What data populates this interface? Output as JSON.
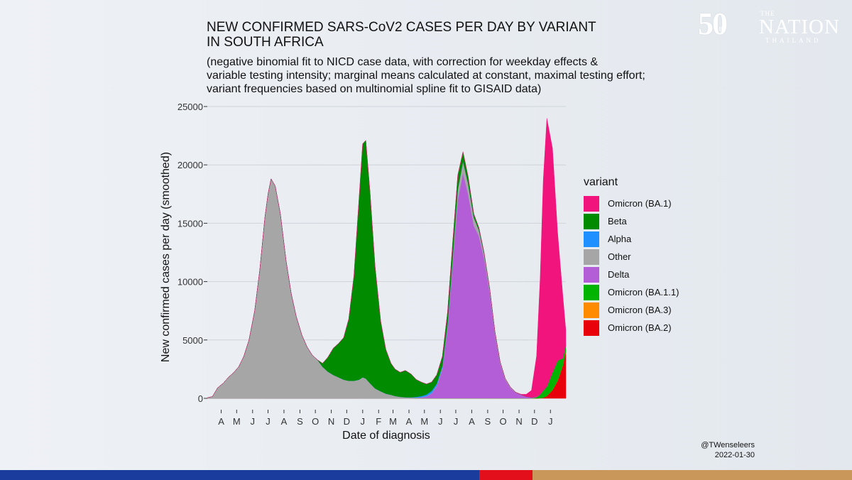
{
  "header": {
    "title_line1": "NEW CONFIRMED SARS-CoV2 CASES PER DAY BY VARIANT",
    "title_line2": "IN SOUTH AFRICA",
    "subtitle_line1": "(negative binomial fit to NICD case data, with correction for weekday effects &",
    "subtitle_line2": "variable testing intensity; marginal means calculated at constant, maximal testing effort;",
    "subtitle_line3": "variant frequencies based on multinomial spline fit to GISAID data)"
  },
  "logo": {
    "number": "50",
    "years": "th",
    "the": "THE",
    "name": "NATION",
    "country": "THAILAND"
  },
  "credit": {
    "author": "@TWenseleers",
    "date": "2022-01-30"
  },
  "colors": {
    "background": "#e8ecf1",
    "grid": "#cfd4da",
    "bar_blue": "#1a3c9c",
    "bar_red": "#e3101b",
    "bar_gold": "#c9975a"
  },
  "chart_data": {
    "type": "area",
    "stacked": true,
    "xlabel": "Date of diagnosis",
    "ylabel": "New confirmed cases per day (smoothed)",
    "ylim": [
      0,
      25000
    ],
    "yticks": [
      0,
      5000,
      10000,
      15000,
      20000,
      25000
    ],
    "ytick_labels": [
      "0",
      "5000",
      "10000",
      "15000",
      "20000",
      "25000"
    ],
    "xlim": [
      "2020-03-05",
      "2022-01-31"
    ],
    "xticks": [
      "2020-04-01",
      "2020-05-01",
      "2020-06-01",
      "2020-07-01",
      "2020-08-01",
      "2020-09-01",
      "2020-10-01",
      "2020-11-01",
      "2020-12-01",
      "2021-01-01",
      "2021-02-01",
      "2021-03-01",
      "2021-04-01",
      "2021-05-01",
      "2021-06-01",
      "2021-07-01",
      "2021-08-01",
      "2021-09-01",
      "2021-10-01",
      "2021-11-01",
      "2021-12-01",
      "2022-01-01"
    ],
    "xtick_labels": [
      "A",
      "M",
      "J",
      "J",
      "A",
      "S",
      "O",
      "N",
      "D",
      "J",
      "F",
      "M",
      "A",
      "M",
      "J",
      "J",
      "A",
      "S",
      "O",
      "N",
      "D",
      "J"
    ],
    "legend_title": "variant",
    "legend_position": "right",
    "grid": true,
    "x": [
      "2020-03-05",
      "2020-03-15",
      "2020-03-25",
      "2020-04-05",
      "2020-04-15",
      "2020-04-25",
      "2020-05-05",
      "2020-05-15",
      "2020-05-25",
      "2020-06-05",
      "2020-06-15",
      "2020-06-25",
      "2020-07-01",
      "2020-07-07",
      "2020-07-15",
      "2020-07-25",
      "2020-08-05",
      "2020-08-15",
      "2020-08-25",
      "2020-09-05",
      "2020-09-15",
      "2020-09-25",
      "2020-10-05",
      "2020-10-15",
      "2020-10-25",
      "2020-11-05",
      "2020-11-15",
      "2020-11-25",
      "2020-12-05",
      "2020-12-15",
      "2020-12-25",
      "2021-01-01",
      "2021-01-07",
      "2021-01-15",
      "2021-01-25",
      "2021-02-05",
      "2021-02-15",
      "2021-02-25",
      "2021-03-05",
      "2021-03-15",
      "2021-03-25",
      "2021-04-05",
      "2021-04-15",
      "2021-04-25",
      "2021-05-05",
      "2021-05-15",
      "2021-05-25",
      "2021-06-05",
      "2021-06-15",
      "2021-06-25",
      "2021-07-05",
      "2021-07-15",
      "2021-07-25",
      "2021-08-05",
      "2021-08-15",
      "2021-08-25",
      "2021-09-05",
      "2021-09-15",
      "2021-09-25",
      "2021-10-05",
      "2021-10-15",
      "2021-10-25",
      "2021-11-05",
      "2021-11-15",
      "2021-11-25",
      "2021-12-05",
      "2021-12-12",
      "2021-12-18",
      "2021-12-25",
      "2022-01-05",
      "2022-01-15",
      "2022-01-25",
      "2022-01-31"
    ],
    "series": [
      {
        "name": "Omicron (BA.2)",
        "color": "#e8000b",
        "values": [
          0,
          0,
          0,
          0,
          0,
          0,
          0,
          0,
          0,
          0,
          0,
          0,
          0,
          0,
          0,
          0,
          0,
          0,
          0,
          0,
          0,
          0,
          0,
          0,
          0,
          0,
          0,
          0,
          0,
          0,
          0,
          0,
          0,
          0,
          0,
          0,
          0,
          0,
          0,
          0,
          0,
          0,
          0,
          0,
          0,
          0,
          0,
          0,
          0,
          0,
          0,
          0,
          0,
          0,
          0,
          0,
          0,
          0,
          0,
          0,
          0,
          0,
          0,
          0,
          0,
          0,
          10,
          50,
          200,
          700,
          1500,
          2800,
          4000
        ]
      },
      {
        "name": "Omicron (BA.3)",
        "color": "#ff8c00",
        "values": [
          0,
          0,
          0,
          0,
          0,
          0,
          0,
          0,
          0,
          0,
          0,
          0,
          0,
          0,
          0,
          0,
          0,
          0,
          0,
          0,
          0,
          0,
          0,
          0,
          0,
          0,
          0,
          0,
          0,
          0,
          0,
          0,
          0,
          0,
          0,
          0,
          0,
          0,
          0,
          0,
          0,
          0,
          0,
          0,
          0,
          0,
          0,
          0,
          0,
          0,
          0,
          0,
          0,
          0,
          0,
          0,
          0,
          0,
          0,
          0,
          0,
          0,
          0,
          0,
          0,
          0,
          0,
          0,
          0,
          20,
          30,
          30,
          30
        ]
      },
      {
        "name": "Omicron (BA.1.1)",
        "color": "#00b400",
        "values": [
          0,
          0,
          0,
          0,
          0,
          0,
          0,
          0,
          0,
          0,
          0,
          0,
          0,
          0,
          0,
          0,
          0,
          0,
          0,
          0,
          0,
          0,
          0,
          0,
          0,
          0,
          0,
          0,
          0,
          0,
          0,
          0,
          0,
          0,
          0,
          0,
          0,
          0,
          0,
          0,
          0,
          0,
          0,
          0,
          0,
          0,
          0,
          0,
          0,
          0,
          0,
          0,
          0,
          0,
          0,
          0,
          0,
          0,
          0,
          0,
          0,
          0,
          0,
          0,
          0,
          80,
          300,
          600,
          800,
          1500,
          1700,
          600,
          500
        ]
      },
      {
        "name": "Delta",
        "color": "#b35ed6",
        "values": [
          0,
          0,
          0,
          0,
          0,
          0,
          0,
          0,
          0,
          0,
          0,
          0,
          0,
          0,
          0,
          0,
          0,
          0,
          0,
          0,
          0,
          0,
          0,
          0,
          0,
          0,
          0,
          0,
          0,
          0,
          0,
          0,
          0,
          0,
          0,
          0,
          0,
          0,
          0,
          0,
          0,
          5,
          20,
          60,
          150,
          400,
          1000,
          2500,
          6000,
          11500,
          17000,
          19300,
          17500,
          14800,
          13900,
          12000,
          9000,
          5500,
          3000,
          1600,
          900,
          500,
          300,
          150,
          80,
          40,
          20,
          10,
          5,
          0,
          0,
          0,
          0
        ]
      },
      {
        "name": "Other",
        "color": "#a6a6a6",
        "values": [
          50,
          150,
          900,
          1300,
          1800,
          2200,
          2700,
          3600,
          5000,
          7500,
          11000,
          15500,
          17500,
          18800,
          18200,
          15800,
          11800,
          9000,
          7000,
          5400,
          4400,
          3700,
          3300,
          2700,
          2300,
          2000,
          1800,
          1600,
          1500,
          1500,
          1600,
          1800,
          1700,
          1300,
          850,
          600,
          400,
          300,
          200,
          130,
          90,
          60,
          40,
          30,
          30,
          40,
          80,
          150,
          300,
          500,
          900,
          1000,
          900,
          700,
          500,
          380,
          300,
          220,
          150,
          100,
          60,
          30,
          10,
          5,
          0,
          0,
          0,
          0,
          0,
          0,
          0,
          0,
          0
        ]
      },
      {
        "name": "Alpha",
        "color": "#1e90ff",
        "values": [
          0,
          0,
          0,
          0,
          0,
          0,
          0,
          0,
          0,
          0,
          0,
          0,
          0,
          0,
          0,
          0,
          0,
          0,
          0,
          0,
          0,
          0,
          0,
          0,
          0,
          0,
          0,
          0,
          0,
          0,
          0,
          0,
          0,
          0,
          0,
          0,
          0,
          0,
          0,
          0,
          0,
          20,
          60,
          100,
          150,
          200,
          180,
          150,
          100,
          60,
          30,
          20,
          10,
          5,
          0,
          0,
          0,
          0,
          0,
          0,
          0,
          0,
          0,
          0,
          0,
          0,
          0,
          0,
          0,
          0,
          0,
          0,
          0
        ]
      },
      {
        "name": "Beta",
        "color": "#008b00",
        "values": [
          0,
          0,
          0,
          0,
          0,
          0,
          0,
          0,
          0,
          0,
          0,
          0,
          0,
          0,
          0,
          0,
          0,
          0,
          0,
          0,
          0,
          0,
          0,
          300,
          1200,
          2300,
          2900,
          3600,
          5300,
          9000,
          15500,
          20000,
          20400,
          16500,
          10500,
          6000,
          3800,
          2700,
          2300,
          2100,
          2300,
          2000,
          1500,
          1200,
          900,
          750,
          750,
          800,
          1000,
          1300,
          1200,
          800,
          600,
          300,
          200,
          120,
          80,
          40,
          20,
          10,
          5,
          0,
          0,
          0,
          0,
          0,
          0,
          0,
          0,
          0,
          0,
          0,
          0
        ]
      },
      {
        "name": "Omicron (BA.1)",
        "color": "#f0147c",
        "values": [
          0,
          0,
          0,
          0,
          0,
          0,
          0,
          0,
          0,
          0,
          0,
          0,
          0,
          0,
          0,
          0,
          0,
          0,
          0,
          0,
          0,
          0,
          0,
          0,
          0,
          0,
          0,
          0,
          0,
          0,
          0,
          0,
          0,
          0,
          0,
          0,
          0,
          0,
          0,
          0,
          0,
          0,
          0,
          0,
          0,
          0,
          0,
          0,
          0,
          0,
          0,
          0,
          0,
          0,
          0,
          0,
          0,
          0,
          0,
          0,
          0,
          5,
          40,
          200,
          600,
          3500,
          10000,
          18000,
          23000,
          19200,
          11000,
          5400,
          1300
        ]
      }
    ]
  }
}
